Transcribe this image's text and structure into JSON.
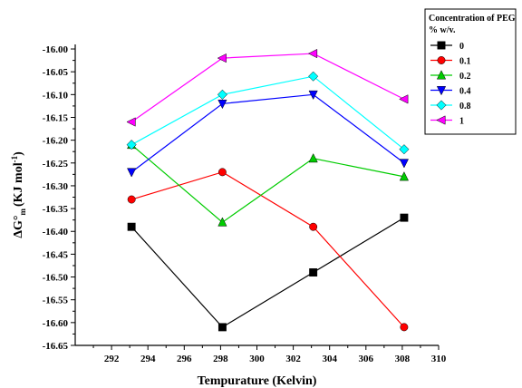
{
  "chart_data": {
    "type": "line",
    "xlabel": "Tempurature (Kelvin)",
    "ylabel_main": "ΔG°",
    "ylabel_sub": "m",
    "ylabel_unit_pre": "(KJ mol",
    "ylabel_unit_sup": "-1",
    "ylabel_unit_post": ")",
    "xlim": [
      290,
      310
    ],
    "ylim": [
      -16.65,
      -15.99
    ],
    "x_ticks": [
      292,
      294,
      296,
      298,
      300,
      302,
      304,
      306,
      308,
      310
    ],
    "y_ticks": [
      -16.0,
      -16.05,
      -16.1,
      -16.15,
      -16.2,
      -16.25,
      -16.3,
      -16.35,
      -16.4,
      -16.45,
      -16.5,
      -16.55,
      -16.6,
      -16.65
    ],
    "x_tick_labels": [
      "292",
      "294",
      "296",
      "298",
      "300",
      "302",
      "304",
      "306",
      "308",
      "310"
    ],
    "y_tick_labels": [
      "-16.00",
      "-16.05",
      "-16.10",
      "-16.15",
      "-16.20",
      "-16.25",
      "-16.30",
      "-16.35",
      "-16.40",
      "-16.45",
      "-16.50",
      "-16.55",
      "-16.60",
      "-16.65"
    ],
    "x": [
      293.1,
      298.1,
      303.1,
      308.1
    ],
    "legend_title_line1": "Concentration of PEG",
    "legend_title_line2": "% w/v.",
    "legend_position": "top-right outside",
    "series": [
      {
        "name": "0",
        "color": "#000000",
        "marker": "square",
        "values": [
          -16.39,
          -16.61,
          -16.49,
          -16.37
        ]
      },
      {
        "name": "0.1",
        "color": "#ff0000",
        "marker": "circle",
        "values": [
          -16.33,
          -16.27,
          -16.39,
          -16.61
        ]
      },
      {
        "name": "0.2",
        "color": "#00cc00",
        "marker": "triangle-up",
        "values": [
          -16.21,
          -16.38,
          -16.24,
          -16.28
        ]
      },
      {
        "name": "0.4",
        "color": "#0000ff",
        "marker": "triangle-down",
        "values": [
          -16.27,
          -16.12,
          -16.1,
          -16.25
        ]
      },
      {
        "name": "0.8",
        "color": "#00ffff",
        "marker": "diamond",
        "values": [
          -16.21,
          -16.1,
          -16.06,
          -16.22
        ]
      },
      {
        "name": "1",
        "color": "#ff00ff",
        "marker": "triangle-left",
        "values": [
          -16.16,
          -16.02,
          -16.01,
          -16.11
        ]
      }
    ]
  }
}
